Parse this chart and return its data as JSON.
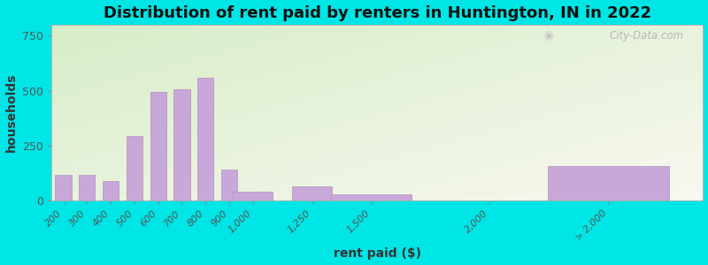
{
  "title": "Distribution of rent paid by renters in Huntington, IN in 2022",
  "xlabel": "rent paid ($)",
  "ylabel": "households",
  "bar_color": "#c8a8d8",
  "bar_edge_color": "#b090c0",
  "background_outer": "#00e5e5",
  "background_top_left": "#d8edc8",
  "background_bottom_right": "#f8f8f0",
  "categories": [
    "200",
    "300",
    "400",
    "500",
    "600",
    "700",
    "800",
    "900",
    "1,000",
    "1,250",
    "1,500",
    "2,000",
    "> 2,000"
  ],
  "x_positions": [
    200,
    300,
    400,
    500,
    600,
    700,
    800,
    900,
    1000,
    1250,
    1500,
    2000,
    2500
  ],
  "bar_widths": [
    80,
    80,
    80,
    80,
    80,
    80,
    80,
    80,
    200,
    200,
    400,
    0,
    600
  ],
  "values": [
    115,
    115,
    90,
    295,
    495,
    505,
    560,
    140,
    40,
    65,
    30,
    0,
    155
  ],
  "ylim": [
    0,
    800
  ],
  "yticks": [
    0,
    250,
    500,
    750
  ],
  "title_fontsize": 13,
  "axis_fontsize": 9,
  "watermark": "City-Data.com",
  "xlim_min": 150,
  "xlim_max": 2900
}
